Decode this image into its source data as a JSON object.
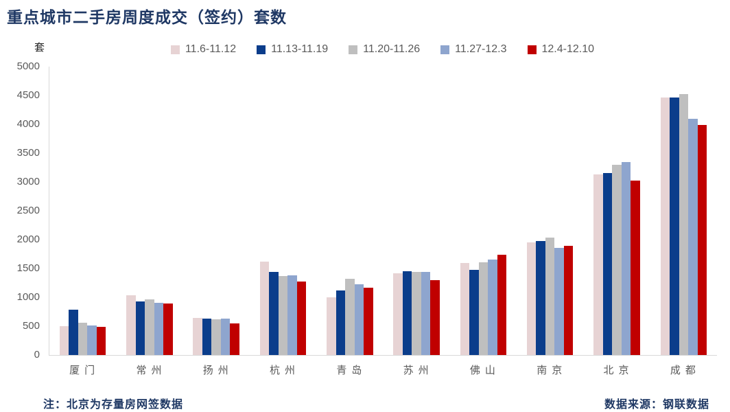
{
  "title": "重点城市二手房周度成交（签约）套数",
  "unit_label": "套",
  "notes": {
    "left": "注：北京为存量房网签数据",
    "right": "数据来源：钢联数据"
  },
  "colors": {
    "title_text": "#1F3864",
    "axis_line": "#D9D9D9",
    "tick_text": "#595959",
    "series_pink": "#E7D3D4",
    "series_navy": "#0B3D8B",
    "series_gray": "#BFBFBF",
    "series_steelblue": "#8EA5CE",
    "series_red": "#C00000"
  },
  "chart_data": {
    "type": "bar",
    "title": "重点城市二手房周度成交（签约）套数",
    "ylabel": "套",
    "xlabel": "",
    "ylim": [
      0,
      5000
    ],
    "ytick_step": 500,
    "yticks": [
      0,
      500,
      1000,
      1500,
      2000,
      2500,
      3000,
      3500,
      4000,
      4500,
      5000
    ],
    "grid": false,
    "legend_position": "top",
    "categories": [
      "厦门",
      "常州",
      "扬州",
      "杭州",
      "青岛",
      "苏州",
      "佛山",
      "南京",
      "北京",
      "成都"
    ],
    "series": [
      {
        "name": "11.6-11.12",
        "color": "#E7D3D4",
        "values": [
          500,
          1030,
          640,
          1620,
          1000,
          1415,
          1600,
          1950,
          3130,
          4460
        ]
      },
      {
        "name": "11.13-11.19",
        "color": "#0B3D8B",
        "values": [
          790,
          930,
          630,
          1440,
          1115,
          1455,
          1480,
          1980,
          3150,
          4460
        ]
      },
      {
        "name": "11.20-11.26",
        "color": "#BFBFBF",
        "values": [
          565,
          970,
          620,
          1365,
          1320,
          1445,
          1610,
          2030,
          3300,
          4520
        ]
      },
      {
        "name": "11.27-12.3",
        "color": "#8EA5CE",
        "values": [
          515,
          905,
          630,
          1380,
          1230,
          1445,
          1655,
          1860,
          3340,
          4100
        ]
      },
      {
        "name": "12.4-12.10",
        "color": "#C00000",
        "values": [
          485,
          890,
          550,
          1270,
          1170,
          1300,
          1740,
          1890,
          3020,
          3990
        ]
      }
    ]
  }
}
